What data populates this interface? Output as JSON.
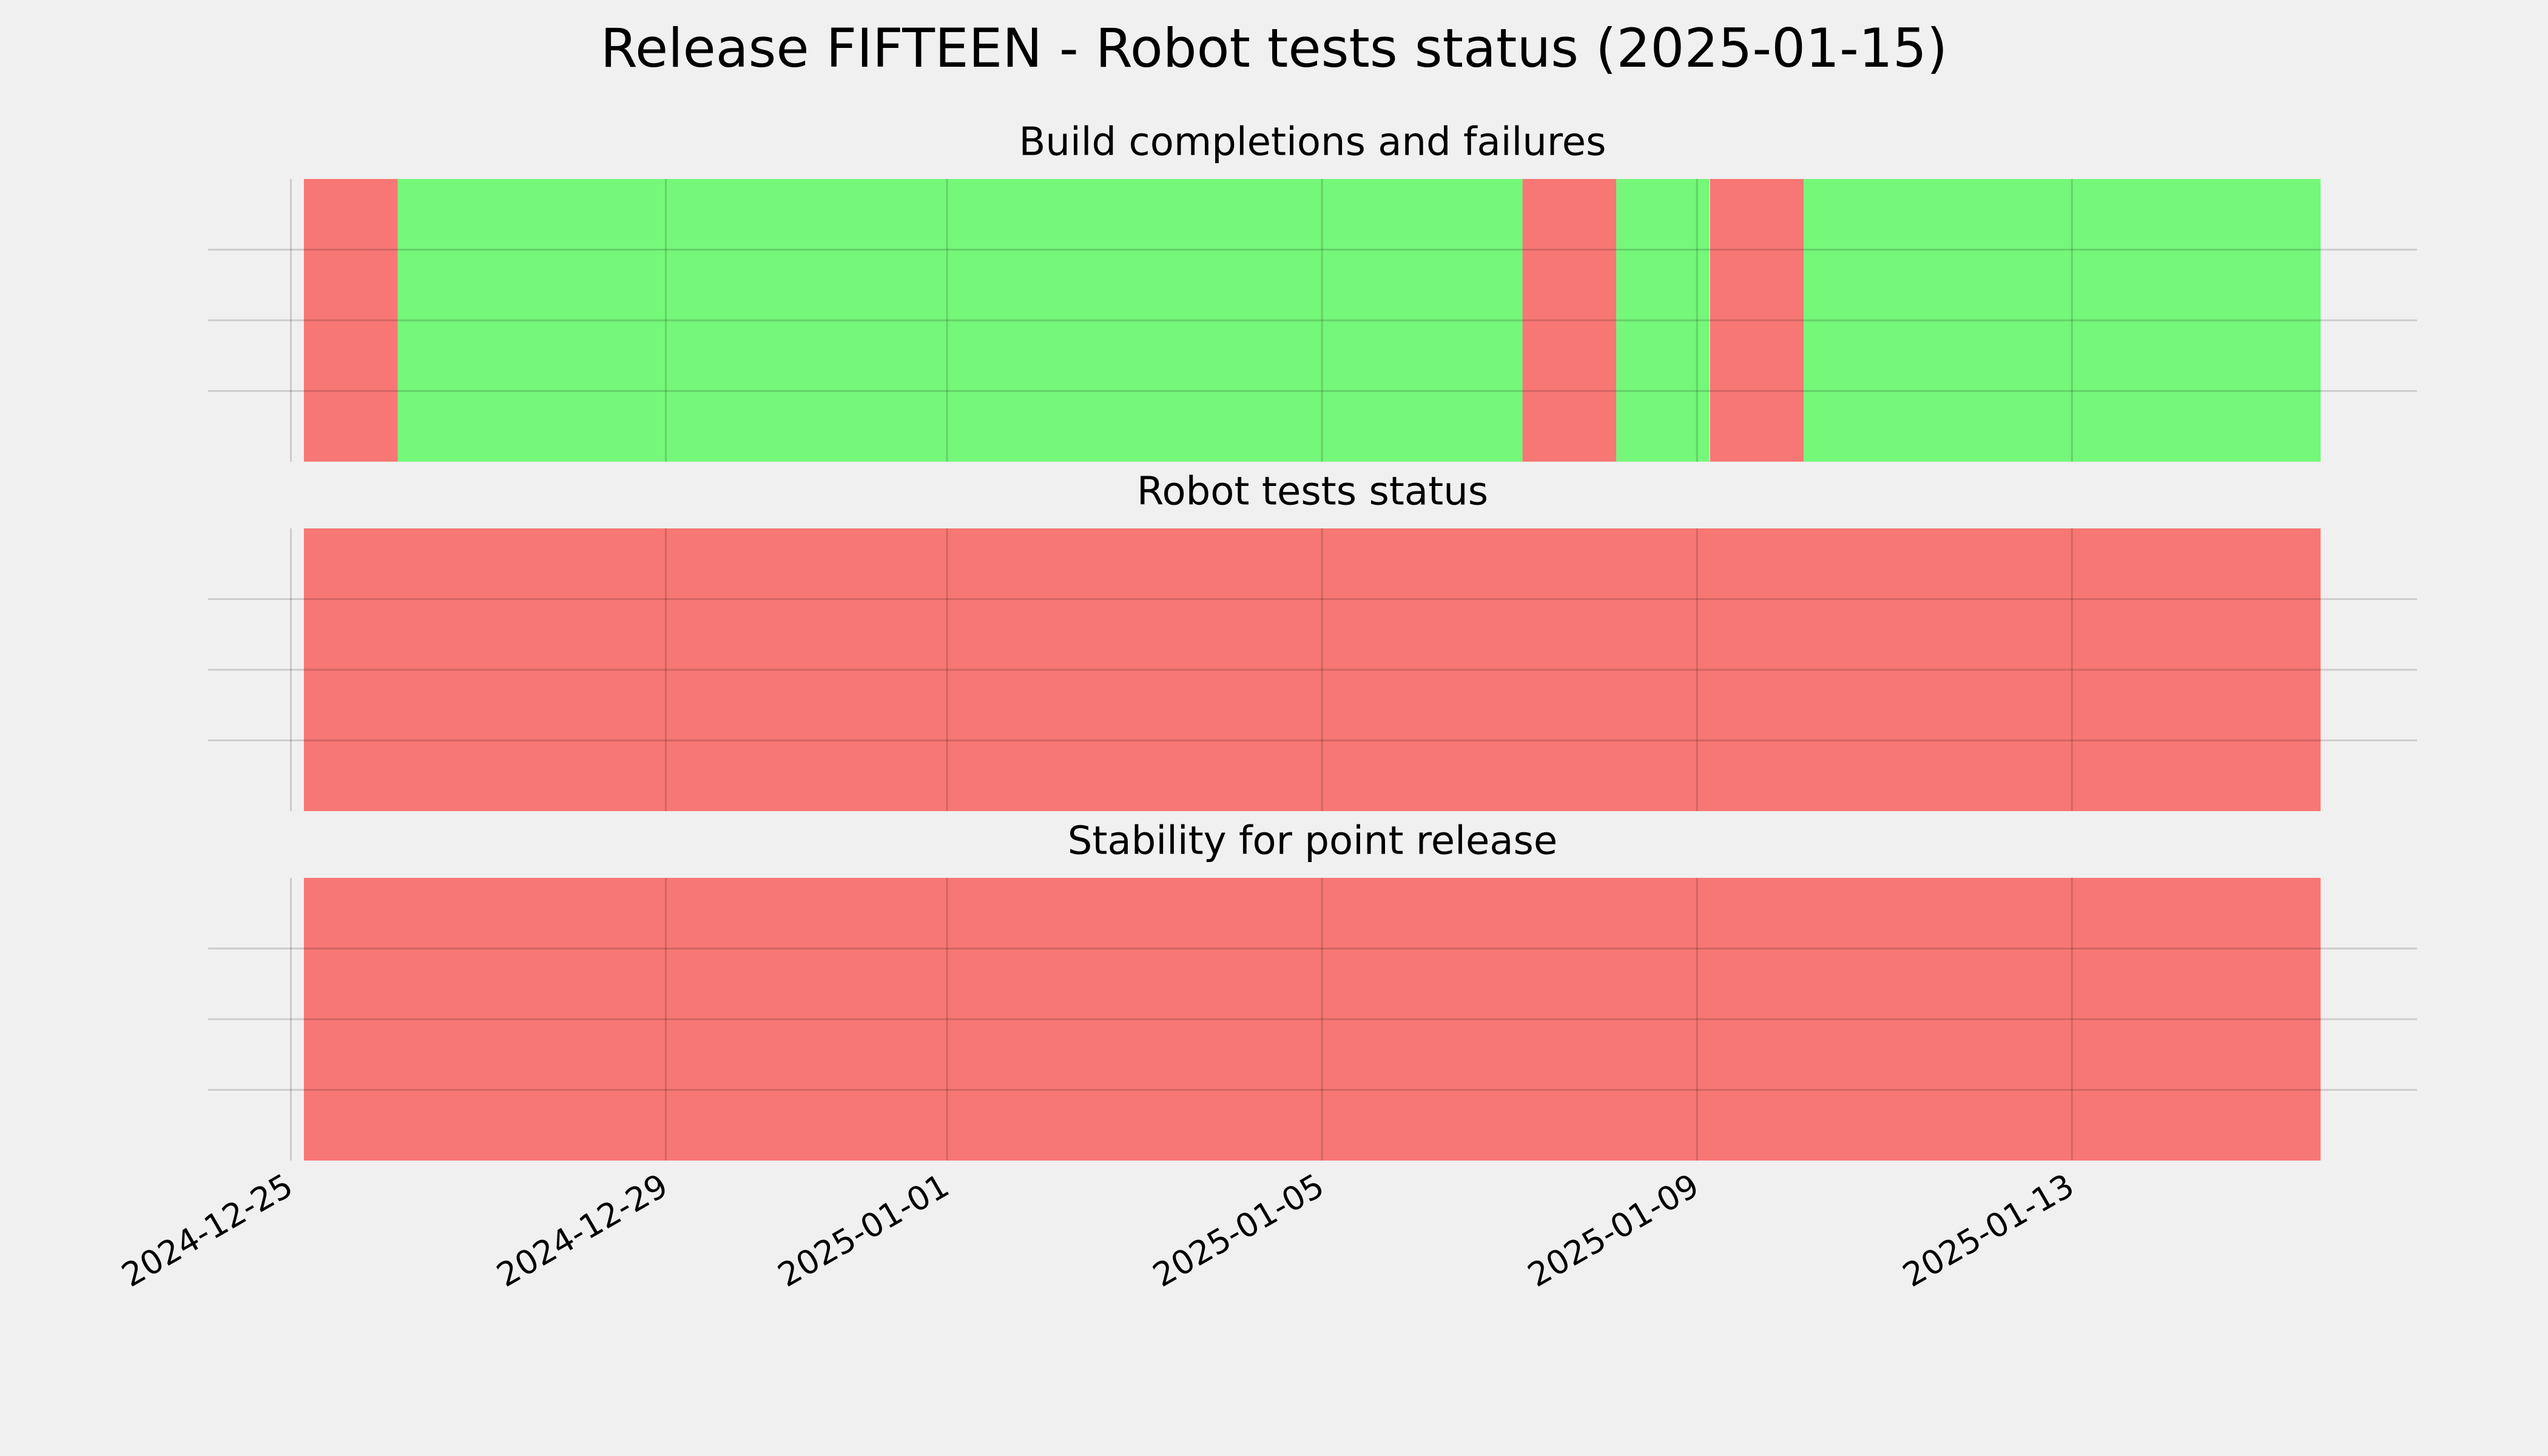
{
  "chart_data": {
    "type": "timeline",
    "title": "Release FIFTEEN - Robot tests status (2025-01-15)",
    "xlim": [
      "2024-12-24T02:48",
      "2025-01-16T16:20"
    ],
    "xticks": [
      "2024-12-25",
      "2024-12-29",
      "2025-01-01",
      "2025-01-05",
      "2025-01-09",
      "2025-01-13"
    ],
    "ylim": [
      0,
      1
    ],
    "yticks": [
      0.25,
      0.5,
      0.75
    ],
    "grid": true,
    "panels": [
      {
        "title": "Build completions and failures",
        "spans": [
          {
            "start": "2024-12-25T03:20",
            "end": "2024-12-26T03:20",
            "color": "#f77774"
          },
          {
            "start": "2024-12-26T03:20",
            "end": "2025-01-07T03:20",
            "color": "#75f77a"
          },
          {
            "start": "2025-01-07T03:20",
            "end": "2025-01-08T03:20",
            "color": "#f77774"
          },
          {
            "start": "2025-01-08T03:20",
            "end": "2025-01-09T03:10",
            "color": "#75f77a"
          },
          {
            "start": "2025-01-09T03:20",
            "end": "2025-01-10T03:20",
            "color": "#f77774"
          },
          {
            "start": "2025-01-10T03:20",
            "end": "2025-01-15T15:40",
            "color": "#75f77a"
          }
        ]
      },
      {
        "title": "Robot tests status",
        "spans": [
          {
            "start": "2024-12-25T03:20",
            "end": "2025-01-15T15:40",
            "color": "#f77774"
          }
        ]
      },
      {
        "title": "Stability for point release",
        "spans": [
          {
            "start": "2024-12-25T03:20",
            "end": "2025-01-15T15:40",
            "color": "#f77774"
          }
        ]
      }
    ]
  }
}
